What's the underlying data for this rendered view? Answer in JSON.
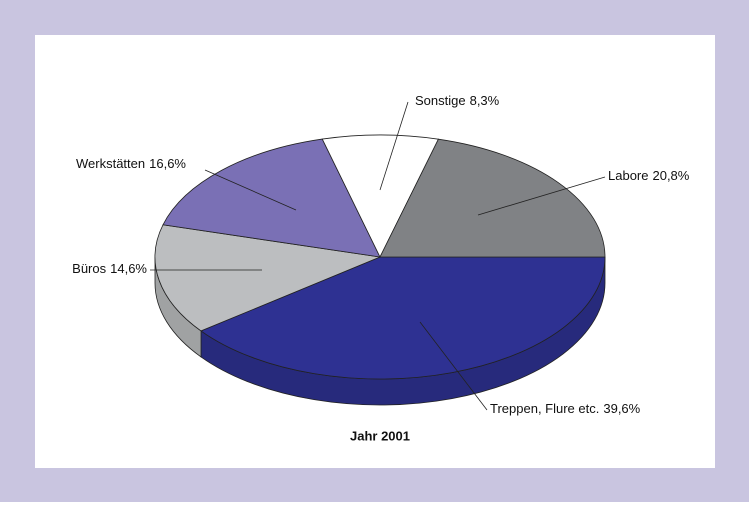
{
  "chart_data": {
    "type": "pie",
    "title": "Jahr 2001",
    "categories": [
      "Treppen, Flure etc.",
      "Büros",
      "Werkstätten",
      "Sonstige",
      "Labore"
    ],
    "values": [
      39.6,
      14.6,
      16.6,
      8.3,
      20.8
    ],
    "value_labels": [
      "39,6%",
      "14,6%",
      "16,6%",
      "8,3%",
      "20,8%"
    ],
    "colors": [
      "#2e3192",
      "#bcbec0",
      "#7a70b5",
      "#ffffff",
      "#808285"
    ]
  }
}
